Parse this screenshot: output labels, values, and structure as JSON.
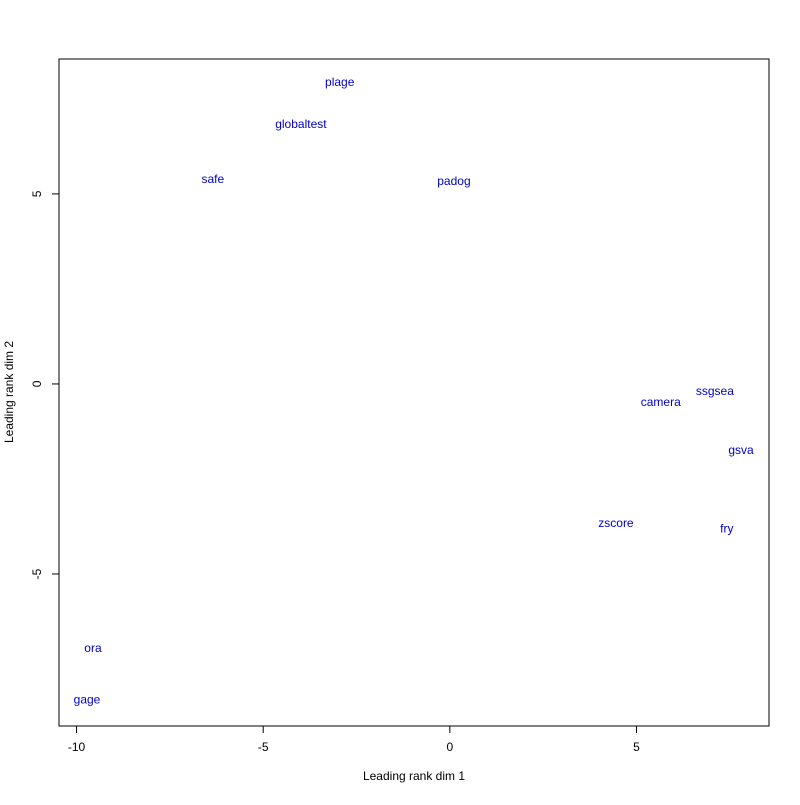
{
  "chart_data": {
    "type": "scatter",
    "xlabel": "Leading rank dim 1",
    "ylabel": "Leading rank dim 2",
    "labels": [
      "plage",
      "globaltest",
      "safe",
      "padog",
      "camera",
      "ssgsea",
      "gsva",
      "zscore",
      "fry",
      "ora",
      "gage"
    ],
    "x": [
      -2.95,
      -3.99,
      -6.35,
      0.11,
      5.65,
      7.1,
      7.8,
      4.45,
      7.42,
      -9.56,
      -9.72
    ],
    "y": [
      7.92,
      6.82,
      5.37,
      5.32,
      -0.5,
      -0.21,
      -1.76,
      -3.68,
      -3.82,
      -6.97,
      -8.32
    ],
    "color": "#0000cd",
    "xlim": [
      -10.47,
      8.55
    ],
    "ylim": [
      -9.0,
      8.55
    ],
    "xticks": [
      -10,
      -5,
      0,
      5
    ],
    "yticks": [
      -5,
      0,
      5
    ]
  }
}
